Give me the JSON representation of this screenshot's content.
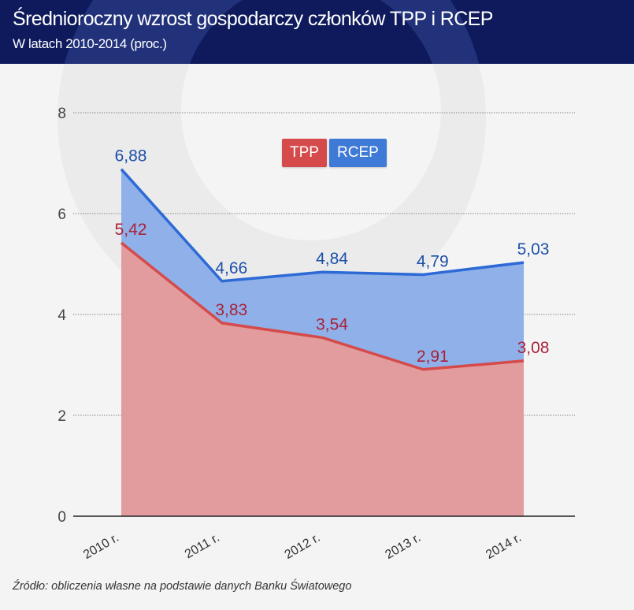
{
  "header": {
    "title": "Średnioroczny wzrost gospodarczy członków TPP i RCEP",
    "subtitle": "W latach 2010-2014 (proc.)"
  },
  "footer": {
    "source": "Źródło: obliczenia własne na podstawie danych Banku Światowego"
  },
  "colors": {
    "header_bg": "#0e1a5c",
    "tpp_line": "#d54b4b",
    "tpp_fill": "#e39c9e",
    "tpp_label": "#a8233a",
    "rcep_line": "#2e6ad6",
    "rcep_fill": "#8fb0e8",
    "rcep_label": "#1d4fa8"
  },
  "chart_data": {
    "type": "area",
    "title": "Średnioroczny wzrost gospodarczy członków TPP i RCEP",
    "subtitle": "W latach 2010-2014 (proc.)",
    "xlabel": "",
    "ylabel": "",
    "categories": [
      "2010 r.",
      "2011 r.",
      "2012 r.",
      "2013 r.",
      "2014 r."
    ],
    "ylim": [
      0,
      8
    ],
    "yticks": [
      0,
      2,
      4,
      6,
      8
    ],
    "grid": true,
    "legend": {
      "placement": "top-center",
      "entries": [
        "TPP",
        "RCEP"
      ]
    },
    "series": [
      {
        "name": "TPP",
        "values": [
          5.42,
          3.83,
          3.54,
          2.91,
          3.08
        ],
        "labels": [
          "5,42",
          "3,83",
          "3,54",
          "2,91",
          "3,08"
        ]
      },
      {
        "name": "RCEP",
        "values": [
          6.88,
          4.66,
          4.84,
          4.79,
          5.03
        ],
        "labels": [
          "6,88",
          "4,66",
          "4,84",
          "4,79",
          "5,03"
        ]
      }
    ]
  }
}
